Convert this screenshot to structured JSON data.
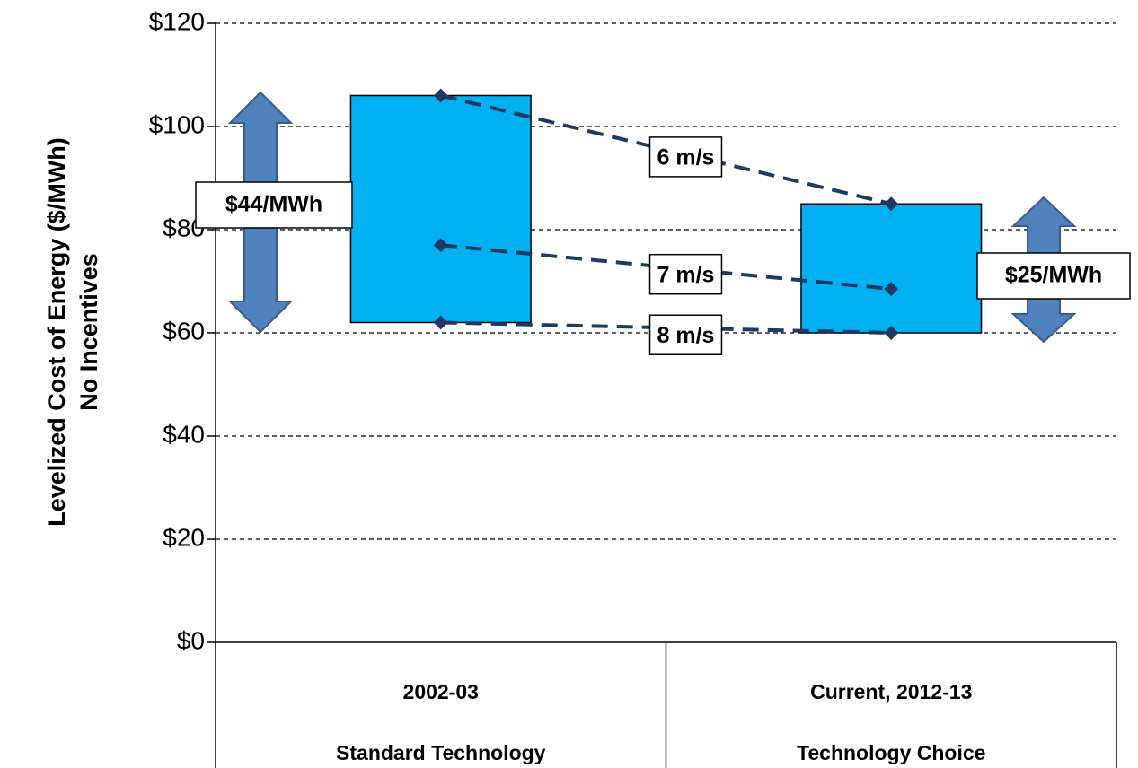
{
  "chart_data": {
    "type": "range_bar",
    "y_label": [
      "Levelized Cost of Energy ($/MWh)",
      "No Incentives"
    ],
    "categories": [
      [
        "2002-03",
        "Standard Technology"
      ],
      [
        "Current, 2012-13",
        "Technology Choice"
      ]
    ],
    "bars": {
      "color": "#00b0f0",
      "low": [
        62,
        60
      ],
      "high": [
        106,
        85
      ]
    },
    "series": [
      {
        "name": "6 m/s",
        "color": "#1f3864",
        "values": [
          106,
          85
        ]
      },
      {
        "name": "7 m/s",
        "color": "#1f3864",
        "values": [
          77,
          68.5
        ]
      },
      {
        "name": "8 m/s",
        "color": "#1f3864",
        "values": [
          62,
          60
        ]
      }
    ],
    "annotations": [
      "$44/MWh",
      "$25/MWh"
    ],
    "ylim": [
      0,
      120
    ],
    "yticks": [
      {
        "value": 0,
        "label": "$0"
      },
      {
        "value": 20,
        "label": "$20"
      },
      {
        "value": 40,
        "label": "$40"
      },
      {
        "value": 60,
        "label": "$60"
      },
      {
        "value": 80,
        "label": "$80"
      },
      {
        "value": 100,
        "label": "$100"
      },
      {
        "value": 120,
        "label": "$120"
      }
    ],
    "grid": true
  }
}
